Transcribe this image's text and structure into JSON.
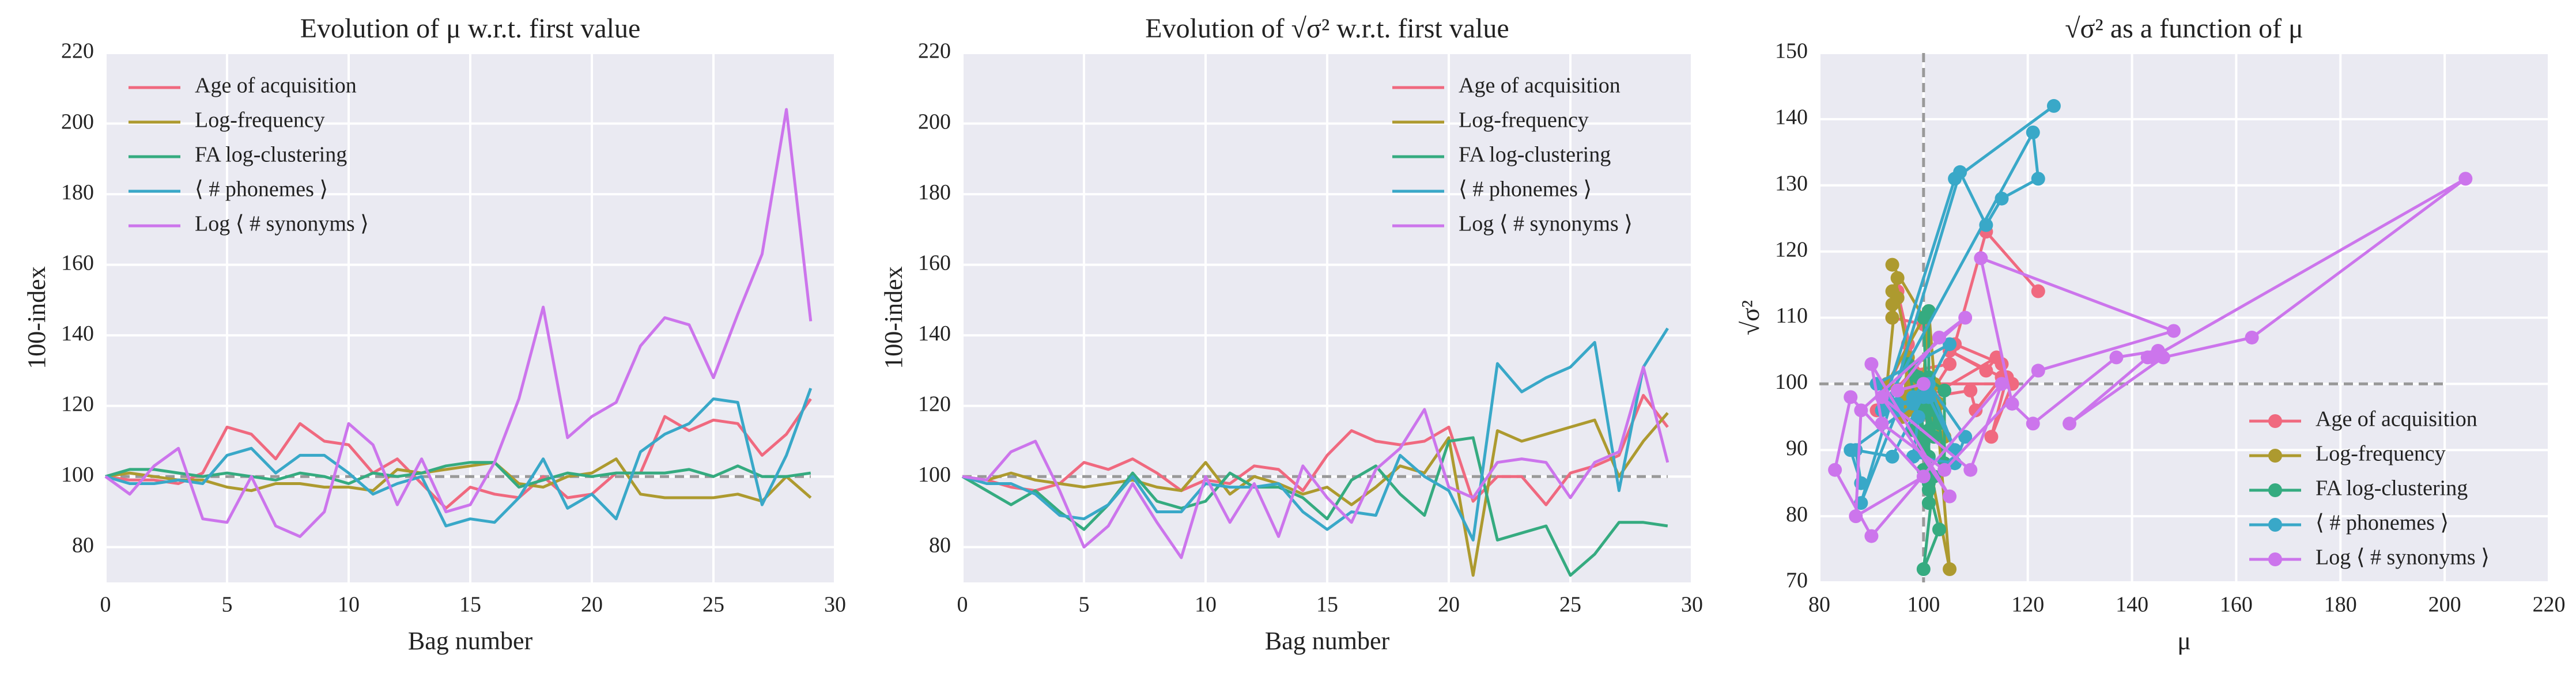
{
  "chart_data": [
    {
      "type": "line",
      "title": "Evolution of μ w.r.t. first value",
      "xlabel": "Bag number",
      "ylabel": "100-index",
      "x": [
        0,
        1,
        2,
        3,
        4,
        5,
        6,
        7,
        8,
        9,
        10,
        11,
        12,
        13,
        14,
        15,
        16,
        17,
        18,
        19,
        20,
        21,
        22,
        23,
        24,
        25,
        26,
        27,
        28,
        29
      ],
      "xlim": [
        0,
        30
      ],
      "xticks": [
        0,
        5,
        10,
        15,
        20,
        25,
        30
      ],
      "ylim": [
        70,
        220
      ],
      "yticks": [
        80,
        100,
        120,
        140,
        160,
        180,
        200,
        220
      ],
      "grid": true,
      "hline": 100,
      "legend": "upper left",
      "series": [
        {
          "name": "Age of acquisition",
          "color": "#f0697f",
          "values": [
            100,
            99,
            99,
            98,
            101,
            114,
            112,
            105,
            115,
            110,
            109,
            101,
            105,
            98,
            91,
            97,
            95,
            94,
            100,
            94,
            95,
            101,
            101,
            117,
            113,
            116,
            115,
            106,
            112,
            122
          ]
        },
        {
          "name": "Log-frequency",
          "color": "#ad9a2f",
          "values": [
            100,
            101,
            100,
            99,
            99,
            97,
            96,
            98,
            98,
            97,
            97,
            96,
            102,
            101,
            102,
            103,
            104,
            98,
            97,
            100,
            101,
            105,
            95,
            94,
            94,
            94,
            95,
            93,
            100,
            94
          ]
        },
        {
          "name": "FA log-clustering",
          "color": "#35ab80",
          "values": [
            100,
            102,
            102,
            101,
            100,
            101,
            100,
            99,
            101,
            100,
            98,
            101,
            100,
            101,
            103,
            104,
            104,
            97,
            99,
            101,
            100,
            101,
            101,
            101,
            102,
            100,
            103,
            100,
            100,
            101
          ]
        },
        {
          "name": "⟨ # phonemes ⟩",
          "color": "#39a8c8",
          "values": [
            100,
            98,
            98,
            99,
            98,
            106,
            108,
            101,
            106,
            106,
            101,
            95,
            98,
            100,
            86,
            88,
            87,
            94,
            105,
            91,
            95,
            88,
            107,
            112,
            115,
            122,
            121,
            92,
            106,
            125
          ]
        },
        {
          "name": "Log ⟨ # synonyms ⟩",
          "color": "#cc75ec",
          "values": [
            100,
            95,
            103,
            108,
            88,
            87,
            100,
            86,
            83,
            90,
            115,
            109,
            92,
            105,
            90,
            92,
            104,
            122,
            148,
            111,
            117,
            121,
            137,
            145,
            143,
            128,
            146,
            163,
            204,
            144
          ]
        }
      ]
    },
    {
      "type": "line",
      "title": "Evolution of √σ² w.r.t. first value",
      "xlabel": "Bag number",
      "ylabel": "100-index",
      "x": [
        0,
        1,
        2,
        3,
        4,
        5,
        6,
        7,
        8,
        9,
        10,
        11,
        12,
        13,
        14,
        15,
        16,
        17,
        18,
        19,
        20,
        21,
        22,
        23,
        24,
        25,
        26,
        27,
        28,
        29
      ],
      "xlim": [
        0,
        30
      ],
      "xticks": [
        0,
        5,
        10,
        15,
        20,
        25,
        30
      ],
      "ylim": [
        70,
        220
      ],
      "yticks": [
        80,
        100,
        120,
        140,
        160,
        180,
        200,
        220
      ],
      "grid": true,
      "hline": 100,
      "legend": "upper right",
      "series": [
        {
          "name": "Age of acquisition",
          "color": "#f0697f",
          "values": [
            100,
            99,
            97,
            96,
            98,
            104,
            102,
            105,
            101,
            96,
            99,
            98,
            103,
            102,
            96,
            106,
            113,
            110,
            109,
            110,
            114,
            93,
            100,
            100,
            92,
            101,
            103,
            106,
            123,
            114
          ]
        },
        {
          "name": "Log-frequency",
          "color": "#ad9a2f",
          "values": [
            100,
            99,
            101,
            99,
            98,
            97,
            98,
            99,
            97,
            96,
            104,
            95,
            100,
            98,
            95,
            97,
            92,
            97,
            103,
            101,
            111,
            72,
            113,
            110,
            112,
            114,
            116,
            100,
            110,
            118
          ]
        },
        {
          "name": "FA log-clustering",
          "color": "#35ab80",
          "values": [
            100,
            96,
            92,
            96,
            90,
            85,
            92,
            101,
            93,
            91,
            93,
            101,
            97,
            97,
            94,
            88,
            99,
            103,
            95,
            89,
            110,
            111,
            82,
            84,
            86,
            72,
            78,
            87,
            87,
            86
          ]
        },
        {
          "name": "⟨ # phonemes ⟩",
          "color": "#39a8c8",
          "values": [
            100,
            98,
            98,
            95,
            89,
            88,
            92,
            100,
            90,
            90,
            98,
            97,
            97,
            98,
            90,
            85,
            90,
            89,
            106,
            100,
            96,
            82,
            132,
            124,
            128,
            131,
            138,
            96,
            131,
            142
          ]
        },
        {
          "name": "Log ⟨ # synonyms ⟩",
          "color": "#cc75ec",
          "values": [
            100,
            99,
            107,
            110,
            96,
            80,
            86,
            98,
            87,
            77,
            100,
            87,
            98,
            83,
            103,
            94,
            87,
            102,
            108,
            119,
            97,
            94,
            104,
            105,
            104,
            94,
            104,
            107,
            131,
            104
          ]
        }
      ]
    },
    {
      "type": "scatter",
      "title": "√σ² as a function of μ",
      "xlabel": "μ",
      "ylabel": "√σ²",
      "xlim": [
        80,
        220
      ],
      "xticks": [
        80,
        100,
        120,
        140,
        160,
        180,
        200,
        220
      ],
      "ylim": [
        70,
        150
      ],
      "yticks": [
        70,
        80,
        90,
        100,
        110,
        120,
        130,
        140,
        150
      ],
      "grid": true,
      "hline": 100,
      "vline": 100,
      "legend": "lower right",
      "series": [
        {
          "name": "Age of acquisition",
          "color": "#f0697f",
          "x": [
            100,
            99,
            99,
            98,
            101,
            114,
            112,
            105,
            115,
            110,
            109,
            101,
            105,
            98,
            91,
            97,
            95,
            94,
            100,
            94,
            95,
            101,
            101,
            117,
            113,
            116,
            115,
            106,
            112,
            122
          ],
          "values": [
            100,
            99,
            97,
            96,
            98,
            104,
            102,
            105,
            101,
            96,
            99,
            98,
            103,
            102,
            96,
            106,
            113,
            110,
            109,
            110,
            114,
            93,
            100,
            100,
            92,
            101,
            103,
            106,
            123,
            114
          ]
        },
        {
          "name": "Log-frequency",
          "color": "#ad9a2f",
          "x": [
            100,
            101,
            100,
            99,
            99,
            97,
            96,
            98,
            98,
            97,
            97,
            96,
            102,
            101,
            102,
            103,
            104,
            98,
            97,
            100,
            101,
            105,
            95,
            94,
            94,
            94,
            95,
            93,
            100,
            94
          ],
          "values": [
            100,
            99,
            101,
            99,
            98,
            97,
            98,
            99,
            97,
            96,
            104,
            95,
            100,
            98,
            95,
            97,
            92,
            97,
            103,
            101,
            111,
            72,
            113,
            110,
            112,
            114,
            116,
            100,
            110,
            118
          ]
        },
        {
          "name": "FA log-clustering",
          "color": "#35ab80",
          "x": [
            100,
            102,
            102,
            101,
            100,
            101,
            100,
            99,
            101,
            100,
            98,
            101,
            100,
            101,
            103,
            104,
            104,
            97,
            99,
            101,
            100,
            101,
            101,
            101,
            102,
            100,
            103,
            100,
            100,
            101
          ],
          "values": [
            100,
            96,
            92,
            96,
            90,
            85,
            92,
            101,
            93,
            91,
            93,
            101,
            97,
            97,
            94,
            88,
            99,
            103,
            95,
            89,
            110,
            111,
            82,
            84,
            86,
            72,
            78,
            87,
            87,
            86
          ]
        },
        {
          "name": "⟨ # phonemes ⟩",
          "color": "#39a8c8",
          "x": [
            100,
            98,
            98,
            99,
            98,
            106,
            108,
            101,
            106,
            106,
            101,
            95,
            98,
            100,
            86,
            88,
            87,
            94,
            105,
            91,
            95,
            88,
            107,
            112,
            115,
            122,
            121,
            92,
            106,
            125
          ],
          "values": [
            100,
            98,
            98,
            95,
            89,
            88,
            92,
            100,
            90,
            90,
            98,
            97,
            97,
            98,
            90,
            85,
            90,
            89,
            106,
            100,
            96,
            82,
            132,
            124,
            128,
            131,
            138,
            96,
            131,
            142
          ]
        },
        {
          "name": "Log ⟨ # synonyms ⟩",
          "color": "#cc75ec",
          "x": [
            100,
            95,
            103,
            108,
            88,
            87,
            100,
            86,
            83,
            90,
            115,
            109,
            92,
            105,
            90,
            92,
            104,
            122,
            148,
            111,
            117,
            121,
            137,
            145,
            143,
            128,
            146,
            163,
            204,
            144
          ],
          "values": [
            100,
            99,
            107,
            110,
            96,
            80,
            86,
            98,
            87,
            77,
            100,
            87,
            98,
            83,
            103,
            94,
            87,
            102,
            108,
            119,
            97,
            94,
            104,
            105,
            104,
            94,
            104,
            107,
            131,
            104
          ]
        }
      ]
    }
  ]
}
